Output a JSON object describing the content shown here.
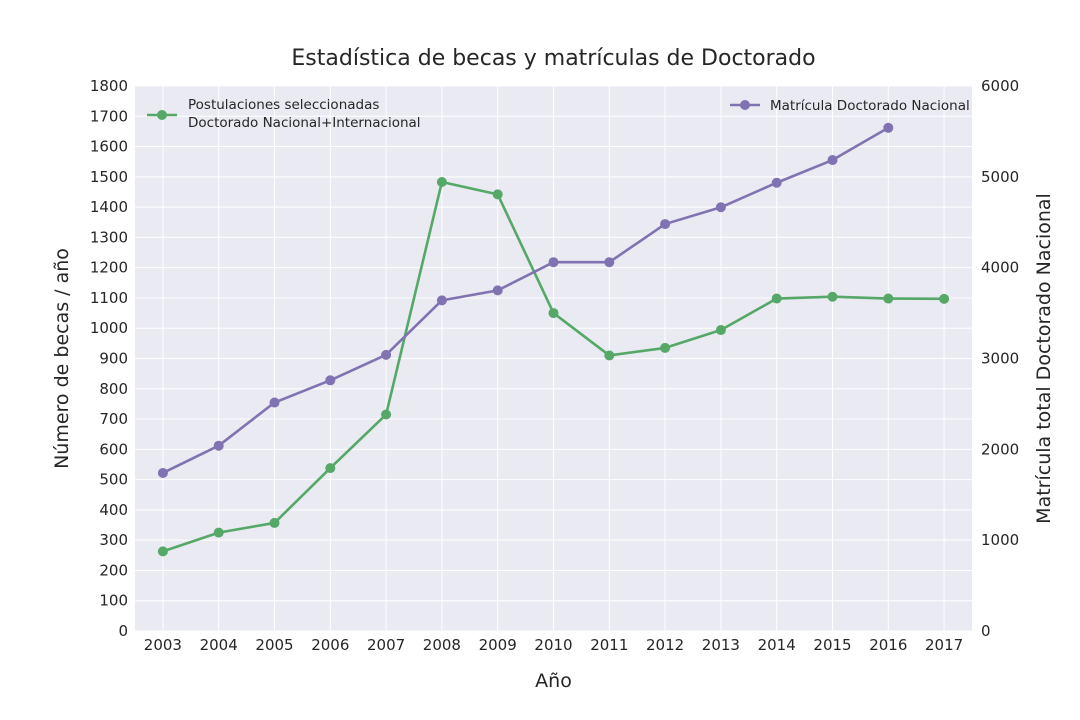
{
  "chart_data": {
    "type": "line",
    "title": "Estadística de becas y matrículas de Doctorado",
    "xlabel": "Año",
    "ylabel_left": "Número de becas / año",
    "ylabel_right": "Matrícula total Doctorado Nacional",
    "ylim_left": [
      0,
      1800
    ],
    "ylim_right": [
      0,
      6000
    ],
    "grid": true,
    "x": [
      2003,
      2004,
      2005,
      2006,
      2007,
      2008,
      2009,
      2010,
      2011,
      2012,
      2013,
      2014,
      2015,
      2016,
      2017
    ],
    "left_ticks": [
      0,
      100,
      200,
      300,
      400,
      500,
      600,
      700,
      800,
      900,
      1000,
      1100,
      1200,
      1300,
      1400,
      1500,
      1600,
      1700,
      1800
    ],
    "right_ticks": [
      0,
      1000,
      2000,
      3000,
      4000,
      5000,
      6000
    ],
    "series": [
      {
        "name_lines": [
          "Postulaciones seleccionadas",
          "Doctorado Nacional+Internacional"
        ],
        "axis": "left",
        "color": "#55a868",
        "legend_position": "top-left",
        "x": [
          2003,
          2004,
          2005,
          2006,
          2007,
          2008,
          2009,
          2010,
          2011,
          2012,
          2013,
          2014,
          2015,
          2016,
          2017
        ],
        "values": [
          263,
          325,
          357,
          538,
          715,
          1483,
          1442,
          1050,
          910,
          935,
          994,
          1098,
          1104,
          1098,
          1097
        ]
      },
      {
        "name_lines": [
          "Matrícula Doctorado Nacional"
        ],
        "axis": "right",
        "color": "#8172b2",
        "legend_position": "top-right",
        "x": [
          2003,
          2004,
          2005,
          2006,
          2007,
          2008,
          2009,
          2010,
          2011,
          2012,
          2013,
          2014,
          2015,
          2016
        ],
        "values": [
          1740,
          2040,
          2515,
          2760,
          3040,
          3640,
          3750,
          4060,
          4060,
          4480,
          4665,
          4935,
          5185,
          5540
        ]
      }
    ]
  },
  "colors": {
    "plot_background": "#eaeaf2",
    "grid": "#ffffff",
    "text": "#262626"
  }
}
